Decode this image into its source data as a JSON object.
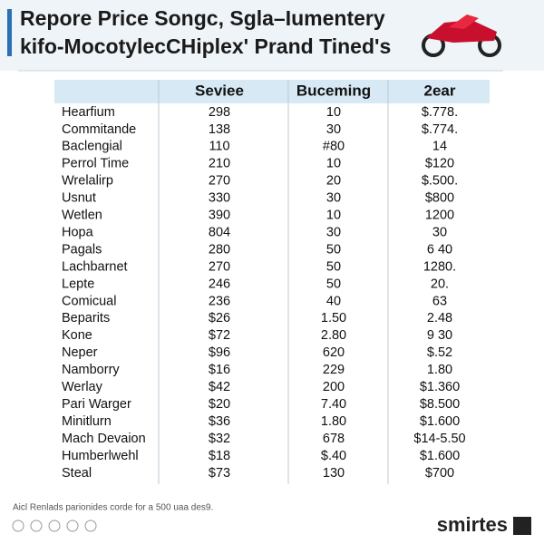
{
  "header": {
    "title_lines": [
      "Repore Price Songc, Sgla–Iumentery",
      "kifo-MocotylecCHiplex' Prand Tined's"
    ]
  },
  "table": {
    "columns": [
      "",
      "Seviee",
      "Buceming",
      "2ear"
    ],
    "rows": [
      [
        "Hearfium",
        "298",
        "10",
        "$.778."
      ],
      [
        "Commitande",
        "138",
        "30",
        "$.774."
      ],
      [
        "Baclengial",
        "110",
        "#80",
        "14"
      ],
      [
        "Perrol Time",
        "210",
        "10",
        "$120"
      ],
      [
        "Wrelalirp",
        "270",
        "20",
        "$.500."
      ],
      [
        "Usnut",
        "330",
        "30",
        "$800"
      ],
      [
        "Wetlen",
        "390",
        "10",
        "1200"
      ],
      [
        "Hopa",
        "804",
        "30",
        "30"
      ],
      [
        "Pagals",
        "280",
        "50",
        "6 40"
      ],
      [
        "Lachbarnet",
        "270",
        "50",
        "1280."
      ],
      [
        "Lepte",
        "246",
        "50",
        "20."
      ],
      [
        "Comicual",
        "236",
        "40",
        "63"
      ],
      [
        "Beparits",
        "$26",
        "1.50",
        "2.48"
      ],
      [
        "Kone",
        "$72",
        "2.80",
        "9 30"
      ],
      [
        "Neper",
        "$96",
        "620",
        "$.52"
      ],
      [
        "Namborry",
        "$16",
        "229",
        "1.80"
      ],
      [
        "Werlay",
        "$42",
        "200",
        "$1.360"
      ],
      [
        "Pari Warger",
        "$20",
        "7.40",
        "$8.500"
      ],
      [
        "Minitlurn",
        "$36",
        "1.80",
        "$1.600"
      ],
      [
        "Mach Devaion",
        "$32",
        "678",
        "$14-5.50"
      ],
      [
        "Humberlwehl",
        "$18",
        "$.40",
        "$1.600"
      ],
      [
        "Steal",
        "$73",
        "130",
        "$700"
      ]
    ]
  },
  "footer": {
    "note": "Aicl Renlads parionides corde for a 500 uaa des9.",
    "brand": "smirtes"
  }
}
